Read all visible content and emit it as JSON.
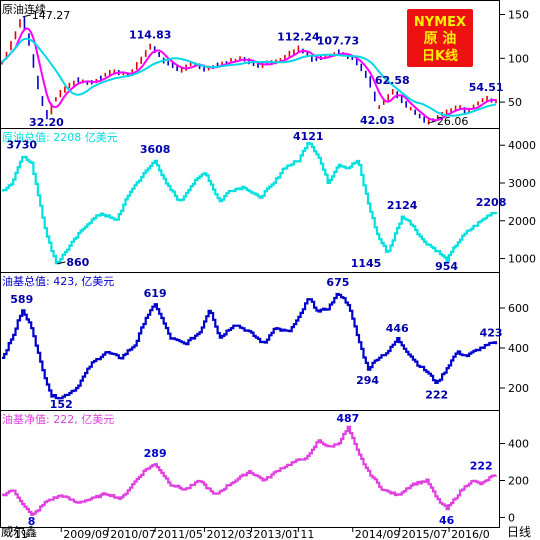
{
  "badge": {
    "line1": "NYMEX",
    "line2": "原 油",
    "line3": "日K线"
  },
  "bottom_bar": {
    "left_label": "威尔鑫",
    "unit_label": "日线"
  },
  "colors": {
    "grid": "#000000",
    "price_up": "#e00000",
    "price_down": "#0000c8",
    "ma_fast": "#ff00ff",
    "ma_slow": "#00d8e8",
    "crude_total": "#00e0e0",
    "spec_total": "#0000cc",
    "spec_net": "#e040e0",
    "badge_bg": "#ee1111",
    "badge_fg": "#ffee00"
  },
  "chart_data": [
    {
      "type": "line",
      "title": "原油连续",
      "ylim": [
        25,
        162
      ],
      "yticks": [
        50,
        100,
        150
      ],
      "x": [
        0,
        0.02,
        0.04,
        0.055,
        0.075,
        0.09,
        0.105,
        0.125,
        0.15,
        0.18,
        0.22,
        0.26,
        0.3,
        0.33,
        0.36,
        0.38,
        0.41,
        0.44,
        0.48,
        0.52,
        0.56,
        0.6,
        0.63,
        0.66,
        0.68,
        0.71,
        0.74,
        0.76,
        0.79,
        0.81,
        0.83,
        0.86,
        0.89,
        0.92,
        0.94,
        0.96,
        0.98,
        1.0
      ],
      "values": [
        95,
        120,
        147.27,
        115,
        60,
        32.2,
        52,
        65,
        75,
        72,
        85,
        82,
        114.83,
        95,
        85,
        95,
        88,
        93,
        100,
        92,
        98,
        112.24,
        98,
        103,
        107.73,
        100,
        78,
        42.03,
        62.58,
        50,
        40,
        26.06,
        36,
        45,
        40,
        48,
        54.51,
        50
      ],
      "annotations": [
        {
          "text": "147.27",
          "x": 0.04,
          "value": 147.27,
          "pos": "right"
        },
        {
          "text": "32.20",
          "x": 0.09,
          "value": 32.2,
          "pos": "below"
        },
        {
          "text": "114.83",
          "x": 0.3,
          "value": 114.83,
          "pos": "above"
        },
        {
          "text": "112.24",
          "x": 0.6,
          "value": 112.24,
          "pos": "above"
        },
        {
          "text": "107.73",
          "x": 0.68,
          "value": 107.73,
          "pos": "above"
        },
        {
          "text": "62.58",
          "x": 0.79,
          "value": 62.58,
          "pos": "above"
        },
        {
          "text": "42.03",
          "x": 0.76,
          "value": 42.03,
          "pos": "below"
        },
        {
          "text": "26.06",
          "x": 0.86,
          "value": 26.06,
          "pos": "right"
        },
        {
          "text": "54.51",
          "x": 0.98,
          "value": 54.51,
          "pos": "above"
        }
      ]
    },
    {
      "type": "line",
      "title": "原油总值: 2208 亿美元",
      "ylim": [
        750,
        4350
      ],
      "yticks": [
        1000,
        2000,
        3000,
        4000
      ],
      "x": [
        0,
        0.02,
        0.04,
        0.06,
        0.09,
        0.11,
        0.14,
        0.17,
        0.2,
        0.23,
        0.26,
        0.29,
        0.31,
        0.33,
        0.36,
        0.38,
        0.41,
        0.44,
        0.46,
        0.49,
        0.52,
        0.55,
        0.57,
        0.6,
        0.62,
        0.64,
        0.66,
        0.68,
        0.7,
        0.72,
        0.74,
        0.76,
        0.78,
        0.81,
        0.83,
        0.85,
        0.88,
        0.9,
        0.92,
        0.94,
        0.96,
        0.99
      ],
      "values": [
        2800,
        3000,
        3730,
        3500,
        1600,
        860,
        1400,
        1900,
        2200,
        2000,
        2800,
        3300,
        3608,
        3000,
        2500,
        2900,
        3300,
        2500,
        2800,
        2900,
        2600,
        3000,
        3400,
        3600,
        4121,
        3700,
        3000,
        3500,
        3400,
        3600,
        2500,
        1600,
        1145,
        2124,
        1900,
        1500,
        1200,
        954,
        1400,
        1700,
        1900,
        2208
      ],
      "annotations": [
        {
          "text": "3730",
          "x": 0.04,
          "value": 3730,
          "pos": "above"
        },
        {
          "text": "860",
          "x": 0.11,
          "value": 860,
          "pos": "right"
        },
        {
          "text": "3608",
          "x": 0.31,
          "value": 3608,
          "pos": "above"
        },
        {
          "text": "4121",
          "x": 0.62,
          "value": 4121,
          "pos": "above"
        },
        {
          "text": "2124",
          "x": 0.81,
          "value": 2124,
          "pos": "above"
        },
        {
          "text": "1145",
          "x": 0.78,
          "value": 1145,
          "pos": "left"
        },
        {
          "text": "954",
          "x": 0.9,
          "value": 954,
          "pos": "below"
        },
        {
          "text": "2208",
          "x": 0.99,
          "value": 2208,
          "pos": "above"
        }
      ]
    },
    {
      "type": "line",
      "title": "油基总值: 423, 亿美元",
      "ylim": [
        110,
        760
      ],
      "yticks": [
        200,
        400,
        600
      ],
      "x": [
        0,
        0.02,
        0.04,
        0.06,
        0.08,
        0.1,
        0.12,
        0.15,
        0.18,
        0.21,
        0.24,
        0.27,
        0.29,
        0.31,
        0.34,
        0.37,
        0.4,
        0.42,
        0.44,
        0.47,
        0.5,
        0.53,
        0.55,
        0.58,
        0.6,
        0.62,
        0.64,
        0.66,
        0.68,
        0.7,
        0.72,
        0.74,
        0.76,
        0.78,
        0.8,
        0.82,
        0.84,
        0.86,
        0.88,
        0.9,
        0.92,
        0.94,
        0.96,
        0.99
      ],
      "values": [
        350,
        450,
        589,
        500,
        300,
        160,
        152,
        200,
        320,
        380,
        350,
        420,
        550,
        619,
        450,
        420,
        480,
        600,
        450,
        520,
        480,
        420,
        500,
        480,
        550,
        650,
        580,
        600,
        675,
        620,
        450,
        294,
        350,
        380,
        446,
        380,
        320,
        280,
        222,
        300,
        380,
        360,
        390,
        423
      ],
      "annotations": [
        {
          "text": "589",
          "x": 0.04,
          "value": 589,
          "pos": "above"
        },
        {
          "text": "152",
          "x": 0.12,
          "value": 152,
          "pos": "below"
        },
        {
          "text": "619",
          "x": 0.31,
          "value": 619,
          "pos": "above"
        },
        {
          "text": "675",
          "x": 0.68,
          "value": 675,
          "pos": "above"
        },
        {
          "text": "294",
          "x": 0.74,
          "value": 294,
          "pos": "below"
        },
        {
          "text": "446",
          "x": 0.8,
          "value": 446,
          "pos": "above"
        },
        {
          "text": "222",
          "x": 0.88,
          "value": 222,
          "pos": "below"
        },
        {
          "text": "423",
          "x": 0.99,
          "value": 423,
          "pos": "above"
        }
      ]
    },
    {
      "type": "line",
      "title": "油基净值: 222, 亿美元",
      "ylim": [
        -30,
        560
      ],
      "yticks": [
        0,
        200,
        400
      ],
      "x": [
        0,
        0.02,
        0.04,
        0.06,
        0.09,
        0.12,
        0.15,
        0.18,
        0.21,
        0.24,
        0.27,
        0.29,
        0.31,
        0.34,
        0.37,
        0.4,
        0.43,
        0.46,
        0.5,
        0.53,
        0.56,
        0.59,
        0.62,
        0.64,
        0.66,
        0.68,
        0.7,
        0.72,
        0.74,
        0.77,
        0.8,
        0.83,
        0.86,
        0.88,
        0.9,
        0.93,
        0.95,
        0.97,
        0.99
      ],
      "values": [
        120,
        150,
        80,
        8,
        90,
        120,
        80,
        100,
        130,
        100,
        200,
        260,
        289,
        180,
        150,
        200,
        120,
        180,
        250,
        200,
        260,
        300,
        330,
        420,
        380,
        400,
        487,
        350,
        250,
        150,
        120,
        180,
        200,
        100,
        46,
        150,
        200,
        180,
        222
      ],
      "annotations": [
        {
          "text": "8",
          "x": 0.06,
          "value": 8,
          "pos": "below"
        },
        {
          "text": "289",
          "x": 0.31,
          "value": 289,
          "pos": "above"
        },
        {
          "text": "487",
          "x": 0.7,
          "value": 487,
          "pos": "above"
        },
        {
          "text": "46",
          "x": 0.9,
          "value": 46,
          "pos": "below"
        },
        {
          "text": "222",
          "x": 0.97,
          "value": 222,
          "pos": "above"
        }
      ]
    }
  ],
  "x_axis": {
    "ticks": [
      {
        "label": "11",
        "x": 0.02
      },
      {
        "label": "2009/09",
        "x": 0.12
      },
      {
        "label": "2010/07",
        "x": 0.215
      },
      {
        "label": "2011/05",
        "x": 0.31
      },
      {
        "label": "2012/03",
        "x": 0.41
      },
      {
        "label": "2013/01",
        "x": 0.505
      },
      {
        "label": "11",
        "x": 0.6
      },
      {
        "label": "2014/09",
        "x": 0.71
      },
      {
        "label": "2015/07",
        "x": 0.805
      },
      {
        "label": "2016/0",
        "x": 0.905
      }
    ]
  }
}
